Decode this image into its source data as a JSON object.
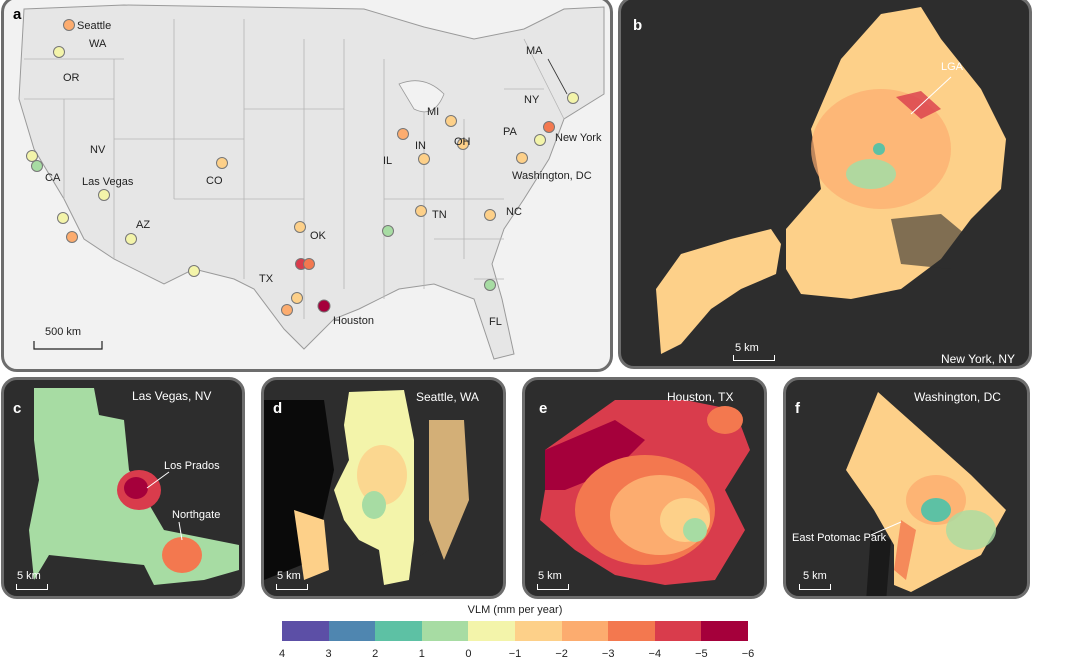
{
  "panels": {
    "a": {
      "letter": "a",
      "scale": "500 km"
    },
    "b": {
      "letter": "b",
      "title": "New York, NY",
      "scale": "5 km",
      "annotation": "LGA"
    },
    "c": {
      "letter": "c",
      "title": "Las Vegas, NV",
      "scale": "5 km",
      "annotations": [
        "Los Prados",
        "Northgate"
      ]
    },
    "d": {
      "letter": "d",
      "title": "Seattle, WA",
      "scale": "5 km"
    },
    "e": {
      "letter": "e",
      "title": "Houston, TX",
      "scale": "5 km"
    },
    "f": {
      "letter": "f",
      "title": "Washington, DC",
      "scale": "5 km",
      "annotation": "East Potomac Park"
    }
  },
  "us_map": {
    "state_labels": [
      "WA",
      "OR",
      "NV",
      "CA",
      "AZ",
      "CO",
      "TX",
      "OK",
      "IL",
      "IN",
      "MI",
      "OH",
      "PA",
      "NY",
      "MA",
      "TN",
      "NC",
      "FL"
    ],
    "city_labels": [
      "Seattle",
      "Las Vegas",
      "Houston",
      "New York",
      "Washington, DC"
    ]
  },
  "legend": {
    "title": "VLM (mm per year)",
    "ticks": [
      "4",
      "3",
      "2",
      "1",
      "0",
      "−1",
      "−2",
      "−3",
      "−4",
      "−5",
      "−6"
    ],
    "colors": [
      "#5c4fa6",
      "#4f86b0",
      "#5dc1a4",
      "#a7dca3",
      "#f3f4aa",
      "#fdd089",
      "#fcac6f",
      "#f3784f",
      "#d93c4c",
      "#a5003b"
    ]
  }
}
